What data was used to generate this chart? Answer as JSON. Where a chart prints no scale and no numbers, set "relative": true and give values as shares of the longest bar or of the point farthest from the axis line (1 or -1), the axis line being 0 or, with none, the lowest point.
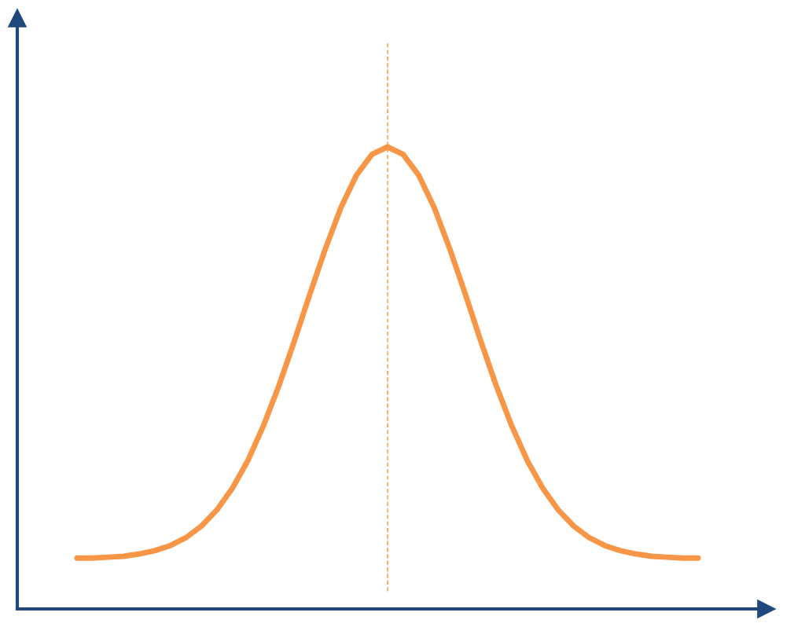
{
  "chart_data": {
    "type": "line",
    "relative": true,
    "categories": [
      null,
      null,
      null,
      null,
      null,
      null,
      null,
      null,
      null,
      null,
      null,
      null,
      null,
      null,
      null,
      null,
      null,
      null,
      null,
      null,
      null,
      null,
      null,
      null,
      null,
      null,
      null,
      null,
      null,
      null,
      null,
      null,
      null,
      null,
      null,
      null,
      null,
      null,
      null,
      null,
      null
    ],
    "series": [
      {
        "color": "#f79646",
        "values": [
          0.11,
          0.11,
          0.112,
          0.114,
          0.119,
          0.126,
          0.137,
          0.154,
          0.179,
          0.214,
          0.261,
          0.321,
          0.396,
          0.483,
          0.58,
          0.682,
          0.78,
          0.869,
          0.939,
          0.984,
          1.0,
          0.984,
          0.939,
          0.869,
          0.78,
          0.682,
          0.58,
          0.483,
          0.396,
          0.321,
          0.261,
          0.214,
          0.179,
          0.154,
          0.137,
          0.126,
          0.119,
          0.114,
          0.112,
          0.11,
          0.11
        ]
      }
    ],
    "legend": false,
    "marker": "none",
    "line_style": "solid"
  }
}
